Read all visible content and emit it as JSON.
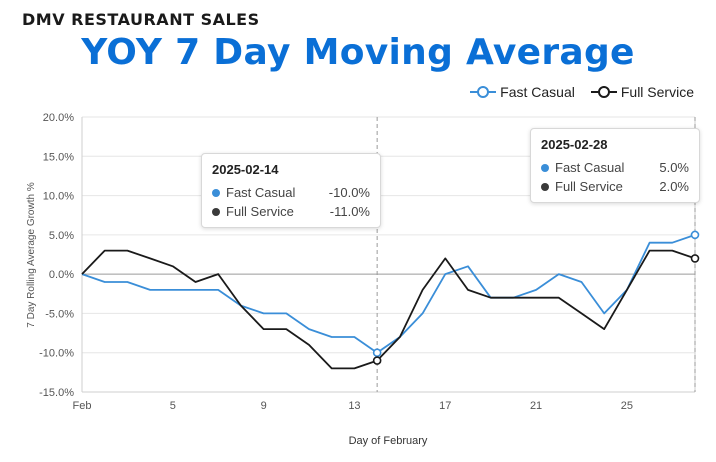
{
  "header": {
    "eyebrow": "DMV RESTAURANT SALES",
    "title": "YOY 7 Day Moving Average"
  },
  "colors": {
    "fast_casual": "#3a8ed8",
    "full_service": "#1a1a1a",
    "title": "#0a6fd6",
    "grid": "#e6e6e6",
    "zero_line": "#9a9a9a"
  },
  "chart_data": {
    "type": "line",
    "xlabel": "Day of February",
    "ylabel": "7 Day Rolling Average Growth %",
    "xlim": [
      1,
      28
    ],
    "ylim": [
      -15,
      20
    ],
    "x_ticks": [
      {
        "x": 1,
        "label": "Feb"
      },
      {
        "x": 5,
        "label": "5"
      },
      {
        "x": 9,
        "label": "9"
      },
      {
        "x": 13,
        "label": "13"
      },
      {
        "x": 17,
        "label": "17"
      },
      {
        "x": 21,
        "label": "21"
      },
      {
        "x": 25,
        "label": "25"
      }
    ],
    "y_ticks": [
      20,
      15,
      10,
      5,
      0,
      -5,
      -10,
      -15
    ],
    "y_tick_labels": [
      "20.0%",
      "15.0%",
      "10.0%",
      "5.0%",
      "0.0%",
      "-5.0%",
      "-10.0%",
      "-15.0%"
    ],
    "grid": true,
    "legend_position": "top-right",
    "x": [
      1,
      2,
      3,
      4,
      5,
      6,
      7,
      8,
      9,
      10,
      11,
      12,
      13,
      14,
      15,
      16,
      17,
      18,
      19,
      20,
      21,
      22,
      23,
      24,
      25,
      26,
      27,
      28
    ],
    "series": [
      {
        "name": "Fast Casual",
        "values": [
          0,
          -1,
          -1,
          -2,
          -2,
          -2,
          -2,
          -4,
          -5,
          -5,
          -7,
          -8,
          -8,
          -10,
          -8,
          -5,
          0,
          1,
          -3,
          -3,
          -2,
          0,
          -1,
          -5,
          -2,
          4,
          4,
          5
        ]
      },
      {
        "name": "Full Service",
        "values": [
          0,
          3,
          3,
          2,
          1,
          -1,
          0,
          -4,
          -7,
          -7,
          -9,
          -12,
          -12,
          -11,
          -8,
          -2,
          2,
          -2,
          -3,
          -3,
          -3,
          -3,
          -5,
          -7,
          -2,
          3,
          3,
          2
        ]
      }
    ],
    "tooltips": [
      {
        "date": "2025-02-14",
        "x": 14,
        "rows": [
          {
            "name": "Fast Casual",
            "value": "-10.0%"
          },
          {
            "name": "Full Service",
            "value": "-11.0%"
          }
        ]
      },
      {
        "date": "2025-02-28",
        "x": 28,
        "rows": [
          {
            "name": "Fast Casual",
            "value": "5.0%"
          },
          {
            "name": "Full Service",
            "value": "2.0%"
          }
        ]
      }
    ]
  }
}
